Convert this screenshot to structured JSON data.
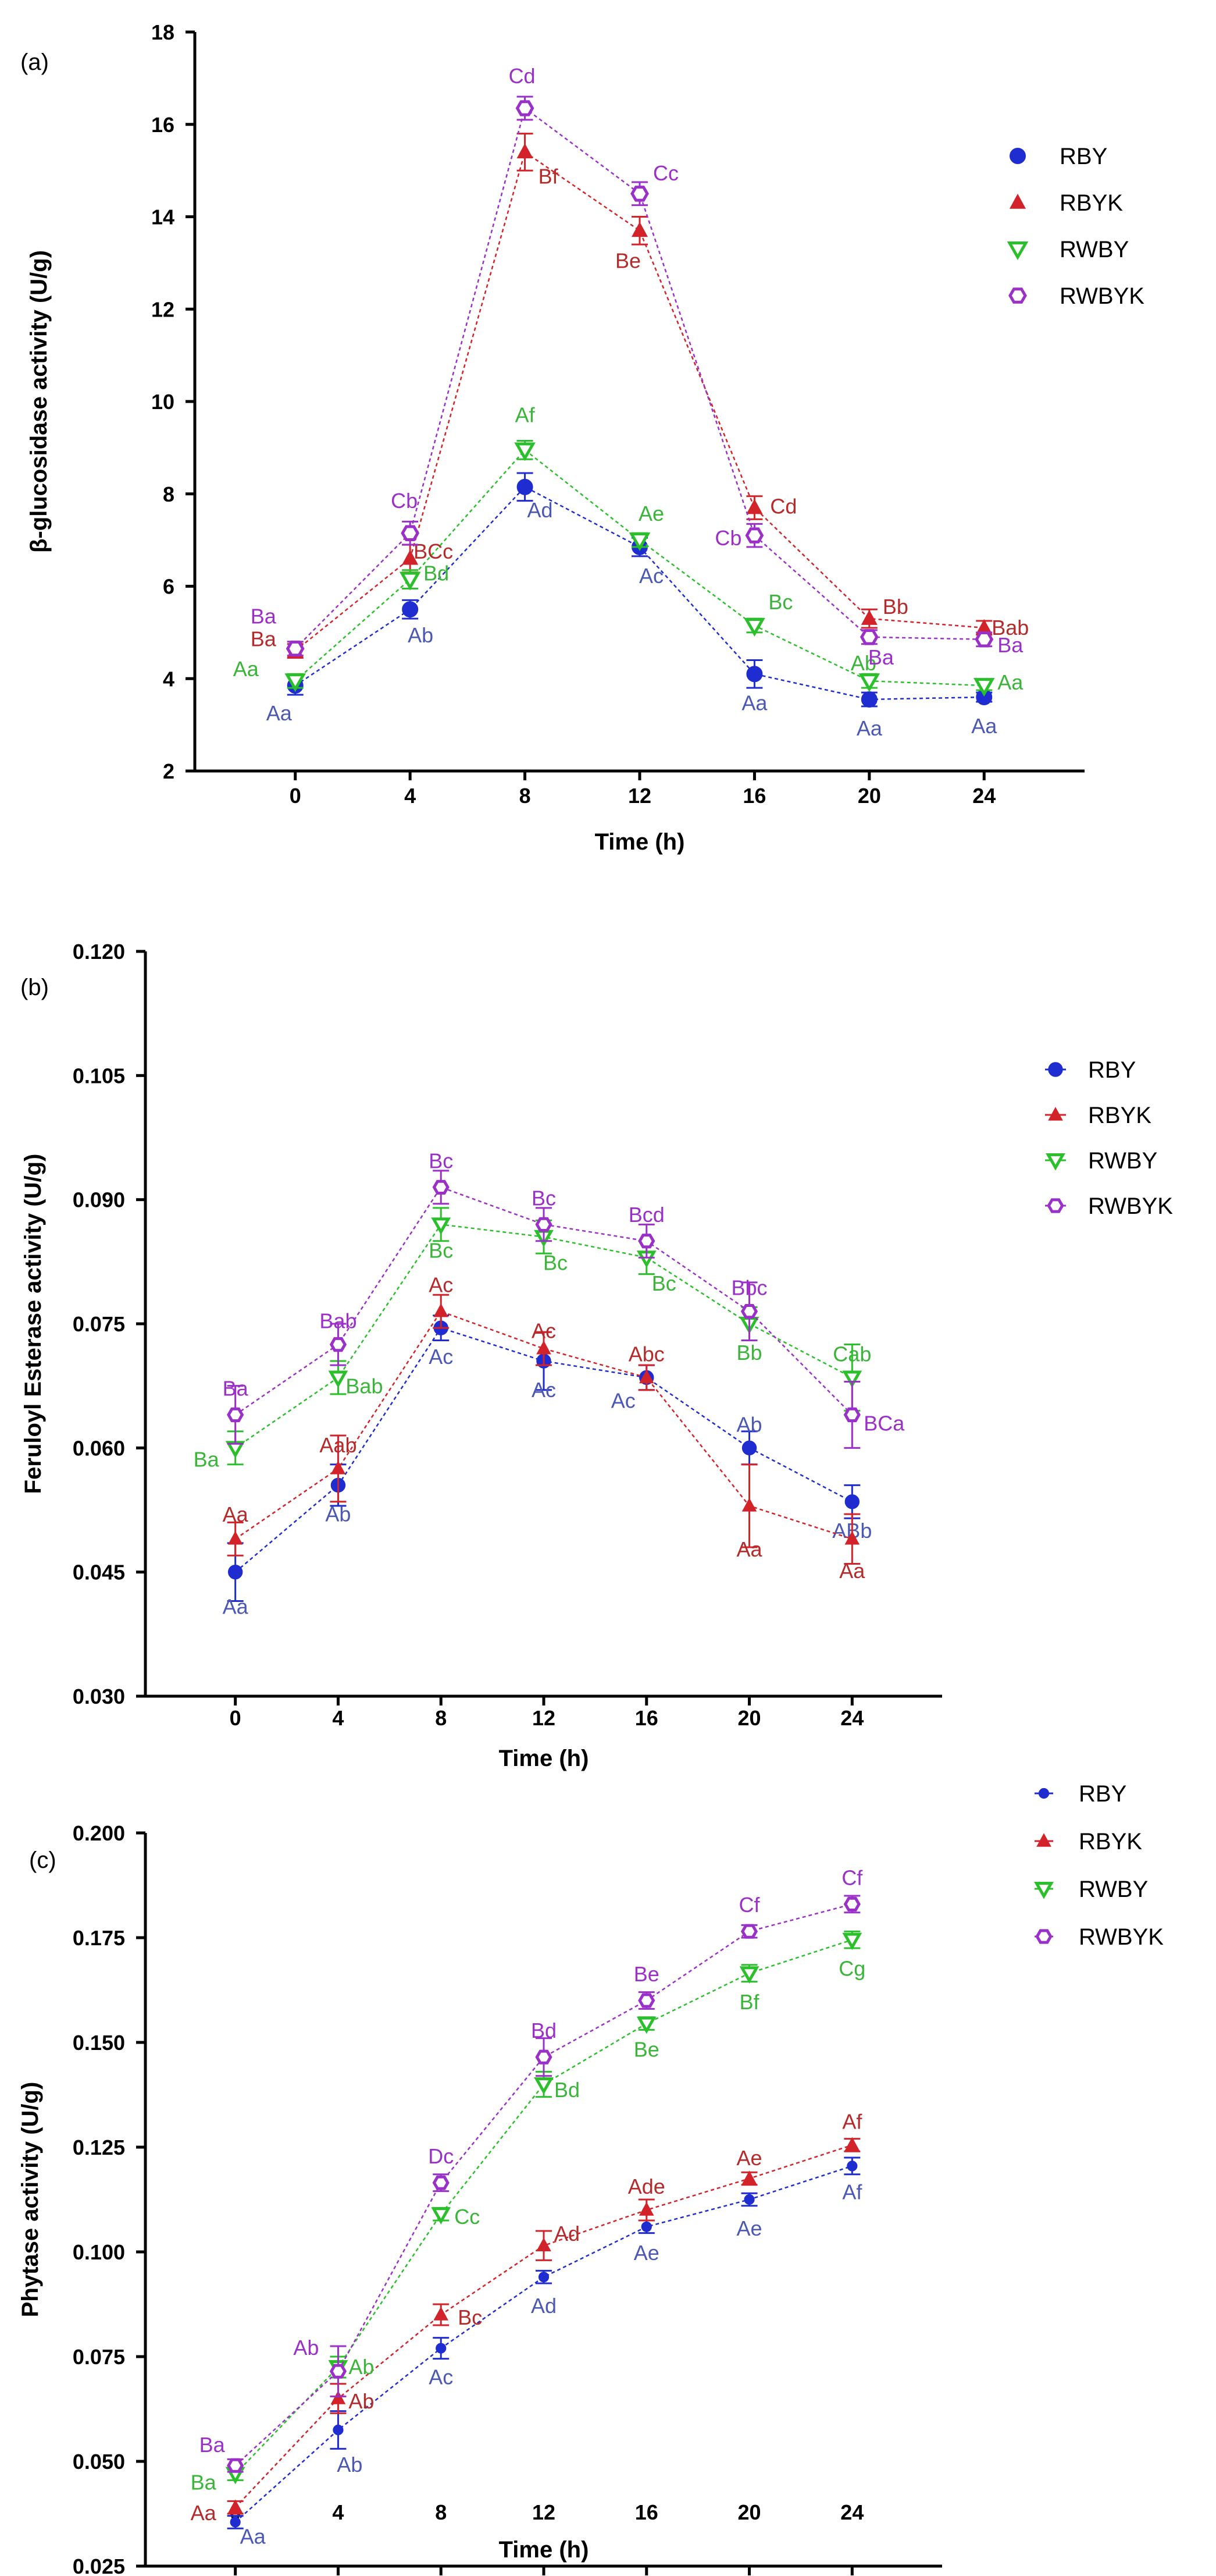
{
  "figure": {
    "panel_count": 3
  },
  "colors": {
    "RBY": "#1f2ccf",
    "RBYK": "#d3232a",
    "RWBY": "#2bbf2b",
    "RWBYK": "#9b30c8",
    "RBY_label": "#4b58b4",
    "RBYK_label": "#b52a2a",
    "RWBY_label": "#3ab53a",
    "RWBYK_label": "#9b30c8"
  },
  "chart_data": [
    {
      "type": "line",
      "panel": "(a)",
      "title": "",
      "xlabel": "Time (h)",
      "ylabel": "β-glucosidase activity (U/g)",
      "x": [
        0,
        4,
        8,
        12,
        16,
        20,
        24
      ],
      "x_ticks": [
        "0",
        "4",
        "8",
        "12",
        "16",
        "20",
        "24"
      ],
      "xlim": [
        -3.5,
        27.5
      ],
      "ylim": [
        2,
        18
      ],
      "y_ticks": [
        "2",
        "4",
        "6",
        "8",
        "10",
        "12",
        "14",
        "16",
        "18"
      ],
      "y_tick_values": [
        2,
        4,
        6,
        8,
        10,
        12,
        14,
        16,
        18
      ],
      "legend_position": "right",
      "series": [
        {
          "name": "RBY",
          "marker": "circle",
          "values": [
            3.85,
            5.5,
            8.15,
            6.85,
            4.1,
            3.55,
            3.6
          ],
          "errors": [
            0.2,
            0.2,
            0.3,
            0.2,
            0.3,
            0.15,
            0.1
          ],
          "labels": [
            "Aa",
            "Ab",
            "Ad",
            "Ac",
            "Aa",
            "Aa",
            "Aa"
          ]
        },
        {
          "name": "RBYK",
          "marker": "triangle",
          "values": [
            4.6,
            6.6,
            15.4,
            13.7,
            7.7,
            5.3,
            5.1
          ],
          "errors": [
            0.15,
            0.3,
            0.4,
            0.3,
            0.25,
            0.2,
            0.15
          ],
          "labels": [
            "Ba",
            "BCc",
            "Bf",
            "Be",
            "Cd",
            "Bb",
            "Bab"
          ]
        },
        {
          "name": "RWBY",
          "marker": "triangle-down",
          "values": [
            3.95,
            6.15,
            8.95,
            7.0,
            5.15,
            3.95,
            3.85
          ],
          "errors": [
            0.15,
            0.2,
            0.2,
            0.15,
            0.15,
            0.15,
            0.1
          ],
          "labels": [
            "Aa",
            "Bd",
            "Af",
            "Ae",
            "Bc",
            "Ab",
            "Aa"
          ]
        },
        {
          "name": "RWBYK",
          "marker": "hexagon",
          "values": [
            4.65,
            7.15,
            16.35,
            14.5,
            7.1,
            4.9,
            4.85
          ],
          "errors": [
            0.15,
            0.25,
            0.25,
            0.25,
            0.25,
            0.15,
            0.15
          ],
          "labels": [
            "Ba",
            "Cb",
            "Cd",
            "Cc",
            "Cb",
            "Ba",
            "Ba"
          ]
        }
      ]
    },
    {
      "type": "line",
      "panel": "(b)",
      "title": "",
      "xlabel": "Time (h)",
      "ylabel": "Feruloyl Esterase activity (U/g)",
      "x": [
        0,
        4,
        8,
        12,
        16,
        20,
        24
      ],
      "x_ticks": [
        "0",
        "4",
        "8",
        "12",
        "16",
        "20",
        "24"
      ],
      "xlim": [
        -3.5,
        27.5
      ],
      "ylim": [
        0.03,
        0.12
      ],
      "y_ticks": [
        "0.030",
        "0.045",
        "0.060",
        "0.075",
        "0.090",
        "0.105",
        "0.120"
      ],
      "y_tick_values": [
        0.03,
        0.045,
        0.06,
        0.075,
        0.09,
        0.105,
        0.12
      ],
      "legend_position": "top-right",
      "series": [
        {
          "name": "RBY",
          "marker": "circle",
          "values": [
            0.045,
            0.0555,
            0.0745,
            0.0705,
            0.0685,
            0.06,
            0.0535
          ],
          "errors": [
            0.0035,
            0.0025,
            0.0015,
            0.0035,
            0.0015,
            0.002,
            0.002
          ],
          "labels": [
            "Aa",
            "Ab",
            "Ac",
            "Ac",
            "Ac",
            "Ab",
            "ABb"
          ]
        },
        {
          "name": "RBYK",
          "marker": "triangle",
          "values": [
            0.049,
            0.0575,
            0.0765,
            0.072,
            0.0685,
            0.053,
            0.049
          ],
          "errors": [
            0.002,
            0.004,
            0.002,
            0.002,
            0.0015,
            0.005,
            0.003
          ],
          "labels": [
            "Aa",
            "Aab",
            "Ac",
            "Ac",
            "Abc",
            "Aa",
            "Aa"
          ]
        },
        {
          "name": "RWBY",
          "marker": "triangle-down",
          "values": [
            0.06,
            0.0685,
            0.087,
            0.0855,
            0.083,
            0.075,
            0.0685
          ],
          "errors": [
            0.002,
            0.002,
            0.002,
            0.002,
            0.002,
            0.002,
            0.004
          ],
          "labels": [
            "Ba",
            "Bab",
            "Bc",
            "Bc",
            "Bc",
            "Bb",
            "Cab"
          ]
        },
        {
          "name": "RWBYK",
          "marker": "hexagon",
          "values": [
            0.064,
            0.0725,
            0.0915,
            0.087,
            0.085,
            0.0765,
            0.064
          ],
          "errors": [
            0.0035,
            0.0025,
            0.002,
            0.002,
            0.002,
            0.0035,
            0.004
          ],
          "labels": [
            "Ba",
            "Bab",
            "Bc",
            "Bc",
            "Bcd",
            "Bbc",
            "BCa"
          ]
        }
      ]
    },
    {
      "type": "line",
      "panel": "(c)",
      "title": "",
      "xlabel": "Time (h)",
      "ylabel": "Phytase activity (U/g)",
      "x": [
        0,
        4,
        8,
        12,
        16,
        20,
        24
      ],
      "x_ticks": [
        "0",
        "4",
        "8",
        "12",
        "16",
        "20",
        "24"
      ],
      "xlim": [
        -3.5,
        27.5
      ],
      "ylim": [
        0.025,
        0.2
      ],
      "y_ticks": [
        "0.025",
        "0.050",
        "0.075",
        "0.100",
        "0.125",
        "0.150",
        "0.175",
        "0.200"
      ],
      "y_tick_values": [
        0.025,
        0.05,
        0.075,
        0.1,
        0.125,
        0.15,
        0.175,
        0.2
      ],
      "legend_position": "top-right",
      "series": [
        {
          "name": "RBY",
          "marker": "circle-small",
          "values": [
            0.0355,
            0.0575,
            0.077,
            0.094,
            0.106,
            0.1125,
            0.1205
          ],
          "errors": [
            0.0015,
            0.0045,
            0.0025,
            0.0015,
            0.0015,
            0.0015,
            0.002
          ],
          "labels": [
            "Aa",
            "Ab",
            "Ac",
            "Ad",
            "Ae",
            "Ae",
            "Af"
          ]
        },
        {
          "name": "RBYK",
          "marker": "triangle",
          "values": [
            0.039,
            0.065,
            0.085,
            0.1015,
            0.11,
            0.1175,
            0.1255
          ],
          "errors": [
            0.0015,
            0.0035,
            0.0025,
            0.0035,
            0.0025,
            0.0015,
            0.0015
          ],
          "labels": [
            "Aa",
            "Ab",
            "Bc",
            "Ad",
            "Ade",
            "Ae",
            "Af"
          ]
        },
        {
          "name": "RWBY",
          "marker": "triangle-down",
          "values": [
            0.047,
            0.0725,
            0.109,
            0.14,
            0.1545,
            0.1665,
            0.1745
          ],
          "errors": [
            0.0015,
            0.0025,
            0.0015,
            0.003,
            0.0015,
            0.002,
            0.002
          ],
          "labels": [
            "Ba",
            "Ab",
            "Cc",
            "Bd",
            "Be",
            "Bf",
            "Cg"
          ]
        },
        {
          "name": "RWBYK",
          "marker": "hexagon",
          "values": [
            0.049,
            0.0715,
            0.1165,
            0.1465,
            0.16,
            0.1765,
            0.183
          ],
          "errors": [
            0.0015,
            0.006,
            0.002,
            0.0045,
            0.002,
            0.0015,
            0.002
          ],
          "labels": [
            "Ba",
            "Ab",
            "Dc",
            "Bd",
            "Be",
            "Cf",
            "Cf"
          ]
        }
      ]
    }
  ]
}
